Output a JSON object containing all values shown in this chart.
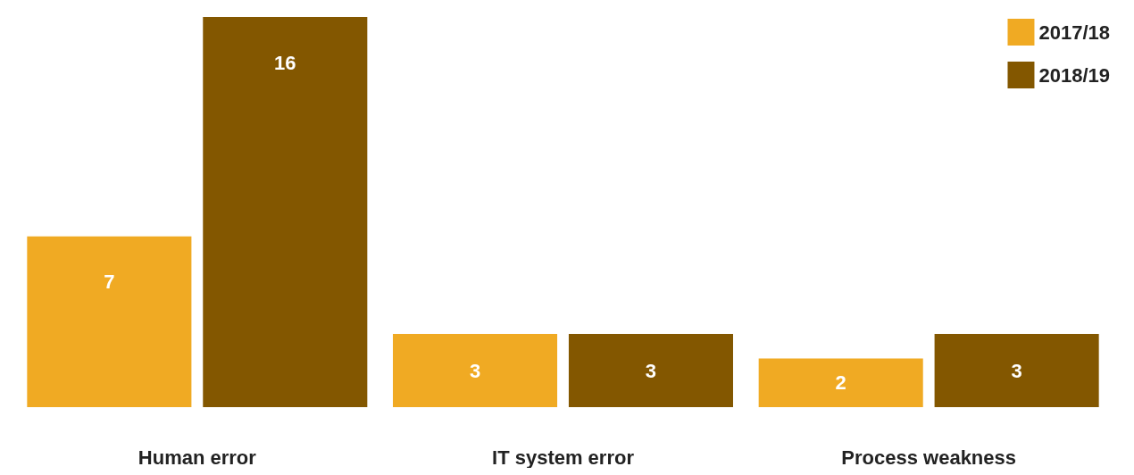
{
  "chart_data": {
    "type": "bar",
    "categories": [
      "Human error",
      "IT system error",
      "Process weakness"
    ],
    "series": [
      {
        "name": "2017/18",
        "color": "#f0aa23",
        "values": [
          7,
          3,
          2
        ]
      },
      {
        "name": "2018/19",
        "color": "#835700",
        "values": [
          16,
          3,
          3
        ]
      }
    ],
    "data_labels": true,
    "legend": "top right"
  }
}
